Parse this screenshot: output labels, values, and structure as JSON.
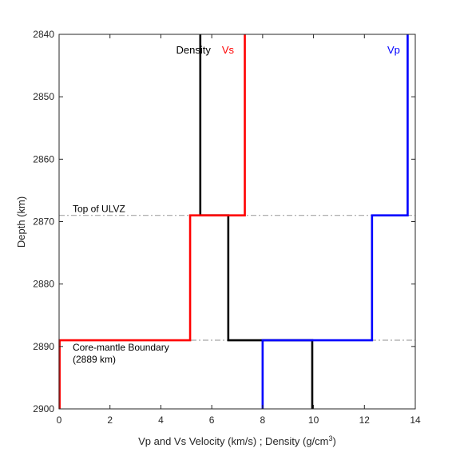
{
  "chart_data": {
    "type": "line",
    "xlabel": "Vp and Vs Velocity (km/s) ; Density (g/cm",
    "xlabel_superscript": "3",
    "xlabel_suffix": ")",
    "ylabel": "Depth (km)",
    "xlim": [
      0,
      14
    ],
    "ylim": [
      2840,
      2900
    ],
    "y_reversed": true,
    "grid": false,
    "x_ticks": [
      0,
      2,
      4,
      6,
      8,
      10,
      12,
      14
    ],
    "y_ticks": [
      2840,
      2850,
      2860,
      2870,
      2880,
      2890,
      2900
    ],
    "series": [
      {
        "name": "Density",
        "color": "#000000",
        "points": [
          [
            5.55,
            2840
          ],
          [
            5.55,
            2869
          ],
          [
            6.65,
            2869
          ],
          [
            6.65,
            2889
          ],
          [
            9.95,
            2889
          ],
          [
            9.95,
            2900
          ]
        ]
      },
      {
        "name": "Vs",
        "color": "#ff0000",
        "points": [
          [
            7.3,
            2840
          ],
          [
            7.3,
            2869
          ],
          [
            5.15,
            2869
          ],
          [
            5.15,
            2889
          ],
          [
            0.02,
            2889
          ],
          [
            0.02,
            2900
          ]
        ]
      },
      {
        "name": "Vp",
        "color": "#0000ff",
        "points": [
          [
            13.7,
            2840
          ],
          [
            13.7,
            2869
          ],
          [
            12.3,
            2869
          ],
          [
            12.3,
            2889
          ],
          [
            8.0,
            2889
          ],
          [
            8.0,
            2900
          ]
        ]
      }
    ],
    "reference_lines": [
      {
        "y": 2869,
        "label": "Top of ULVZ",
        "color": "#a6a6a6"
      },
      {
        "y": 2889,
        "label": "Core-mantle Boundary",
        "label_line2": "(2889 km)",
        "color": "#a6a6a6"
      }
    ],
    "series_labels": [
      {
        "text": "Density",
        "color": "#000000",
        "x": 4.6,
        "y": 2842.4
      },
      {
        "text": "Vs",
        "color": "#ff0000",
        "x": 6.4,
        "y": 2842.4
      },
      {
        "text": "Vp",
        "color": "#0000ff",
        "x": 12.9,
        "y": 2842.4
      }
    ]
  }
}
